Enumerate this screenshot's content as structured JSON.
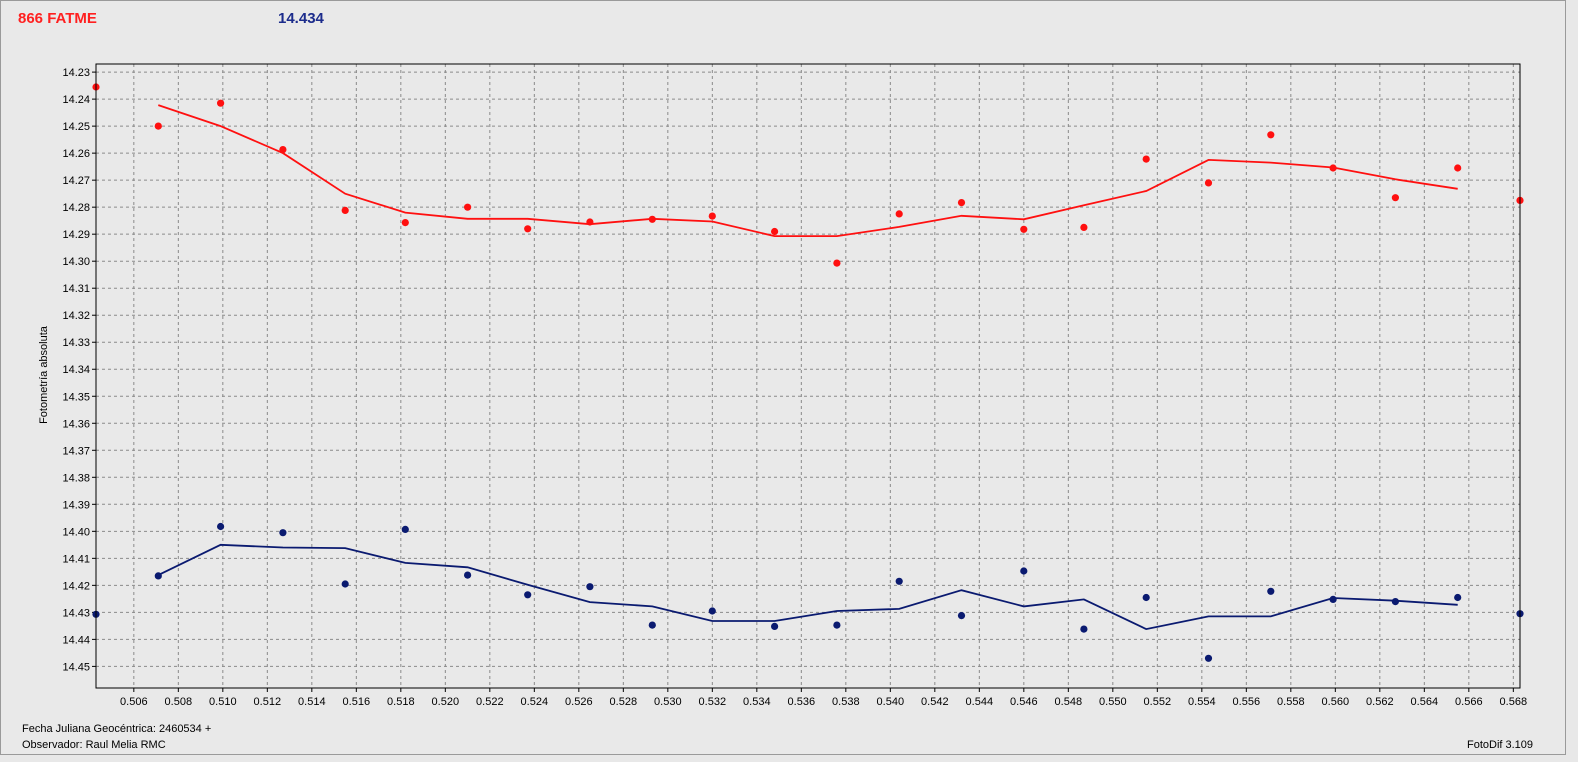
{
  "header": {
    "object_name": "866 FATME",
    "mean_magnitude": "14.434",
    "object_color": "#ff2020",
    "mean_color": "#1c2c8c"
  },
  "footer": {
    "jd_label": "Fecha Juliana Geocéntrica: 2460534 +",
    "observer": "Observador: Raul Melia RMC",
    "version": "FotoDif 3.109"
  },
  "chart_data": {
    "type": "scatter",
    "ylabel": "Fotometría absoluta",
    "xlabel": "",
    "xlim": [
      0.5043,
      0.5683
    ],
    "ylim": [
      14.227,
      14.458
    ],
    "y_inverted": true,
    "grid": true,
    "xticks": [
      "0.506",
      "0.508",
      "0.510",
      "0.512",
      "0.514",
      "0.516",
      "0.518",
      "0.520",
      "0.522",
      "0.524",
      "0.526",
      "0.528",
      "0.530",
      "0.532",
      "0.534",
      "0.536",
      "0.538",
      "0.540",
      "0.542",
      "0.544",
      "0.546",
      "0.548",
      "0.550",
      "0.552",
      "0.554",
      "0.556",
      "0.558",
      "0.560",
      "0.562",
      "0.564",
      "0.566",
      "0.568"
    ],
    "yticks": [
      "14.23",
      "14.24",
      "14.25",
      "14.26",
      "14.27",
      "14.28",
      "14.29",
      "14.30",
      "14.31",
      "14.32",
      "14.33",
      "14.34",
      "14.35",
      "14.36",
      "14.37",
      "14.38",
      "14.39",
      "14.40",
      "14.41",
      "14.42",
      "14.43",
      "14.44",
      "14.45"
    ],
    "series": [
      {
        "color": "#ff1010",
        "points": [
          [
            0.5043,
            14.2355
          ],
          [
            0.5071,
            14.25
          ],
          [
            0.5099,
            14.2415
          ],
          [
            0.5127,
            14.2587
          ],
          [
            0.5155,
            14.2812
          ],
          [
            0.5182,
            14.2857
          ],
          [
            0.521,
            14.28
          ],
          [
            0.5237,
            14.288
          ],
          [
            0.5265,
            14.2855
          ],
          [
            0.5293,
            14.2845
          ],
          [
            0.532,
            14.2833
          ],
          [
            0.5348,
            14.289
          ],
          [
            0.5376,
            14.3007
          ],
          [
            0.5404,
            14.2825
          ],
          [
            0.5432,
            14.2783
          ],
          [
            0.546,
            14.2882
          ],
          [
            0.5487,
            14.2875
          ],
          [
            0.5515,
            14.2622
          ],
          [
            0.5543,
            14.271
          ],
          [
            0.5571,
            14.2532
          ],
          [
            0.5599,
            14.2655
          ],
          [
            0.5627,
            14.2765
          ],
          [
            0.5655,
            14.2655
          ],
          [
            0.5683,
            14.2775
          ]
        ],
        "line": [
          [
            0.5071,
            14.2422
          ],
          [
            0.5099,
            14.25
          ],
          [
            0.5127,
            14.26
          ],
          [
            0.5155,
            14.275
          ],
          [
            0.5182,
            14.282
          ],
          [
            0.521,
            14.2843
          ],
          [
            0.5237,
            14.2843
          ],
          [
            0.5265,
            14.2863
          ],
          [
            0.5293,
            14.2843
          ],
          [
            0.532,
            14.2853
          ],
          [
            0.5348,
            14.2907
          ],
          [
            0.5376,
            14.2907
          ],
          [
            0.5404,
            14.2873
          ],
          [
            0.5432,
            14.2832
          ],
          [
            0.546,
            14.2845
          ],
          [
            0.5487,
            14.2793
          ],
          [
            0.5515,
            14.274
          ],
          [
            0.5543,
            14.2625
          ],
          [
            0.5571,
            14.2635
          ],
          [
            0.5599,
            14.2653
          ],
          [
            0.5627,
            14.2697
          ],
          [
            0.5655,
            14.2732
          ]
        ]
      },
      {
        "color": "#0a1a70",
        "points": [
          [
            0.5043,
            14.4307
          ],
          [
            0.5071,
            14.4165
          ],
          [
            0.5099,
            14.3982
          ],
          [
            0.5127,
            14.4005
          ],
          [
            0.5155,
            14.4195
          ],
          [
            0.5182,
            14.3993
          ],
          [
            0.521,
            14.4162
          ],
          [
            0.5237,
            14.4235
          ],
          [
            0.5265,
            14.4205
          ],
          [
            0.5293,
            14.4347
          ],
          [
            0.532,
            14.4295
          ],
          [
            0.5348,
            14.4352
          ],
          [
            0.5376,
            14.4347
          ],
          [
            0.5404,
            14.4185
          ],
          [
            0.5432,
            14.4312
          ],
          [
            0.546,
            14.4147
          ],
          [
            0.5487,
            14.4362
          ],
          [
            0.5515,
            14.4245
          ],
          [
            0.5543,
            14.447
          ],
          [
            0.5571,
            14.4222
          ],
          [
            0.5599,
            14.4252
          ],
          [
            0.5627,
            14.426
          ],
          [
            0.5655,
            14.4245
          ],
          [
            0.5683,
            14.4305
          ]
        ],
        "line": [
          [
            0.5071,
            14.4162
          ],
          [
            0.5099,
            14.405
          ],
          [
            0.5127,
            14.406
          ],
          [
            0.5155,
            14.4062
          ],
          [
            0.5182,
            14.4117
          ],
          [
            0.521,
            14.4133
          ],
          [
            0.5237,
            14.4198
          ],
          [
            0.5265,
            14.4262
          ],
          [
            0.5293,
            14.4278
          ],
          [
            0.532,
            14.4332
          ],
          [
            0.5348,
            14.4332
          ],
          [
            0.5376,
            14.4295
          ],
          [
            0.5404,
            14.4287
          ],
          [
            0.5432,
            14.4218
          ],
          [
            0.546,
            14.4278
          ],
          [
            0.5487,
            14.4252
          ],
          [
            0.5515,
            14.4362
          ],
          [
            0.5543,
            14.4315
          ],
          [
            0.5571,
            14.4315
          ],
          [
            0.5599,
            14.4247
          ],
          [
            0.5627,
            14.4257
          ],
          [
            0.5655,
            14.4272
          ]
        ]
      }
    ]
  }
}
